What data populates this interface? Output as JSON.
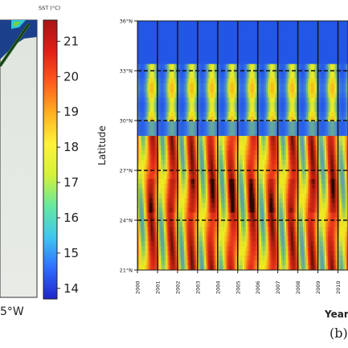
{
  "chart_data": [
    {
      "type": "heatmap",
      "panel": "map",
      "colorbar": {
        "label": "SST (°C)",
        "ticks": [
          21,
          20,
          19,
          18,
          17,
          16,
          15,
          14
        ],
        "range": [
          13.7,
          21.6
        ],
        "colors": [
          "#1f25c8",
          "#2f6dff",
          "#3fc7f0",
          "#66e8a0",
          "#d4f23a",
          "#fff23a",
          "#ffb020",
          "#ff5a1e",
          "#e01e18",
          "#a81414"
        ]
      },
      "xtick_labels": [
        "5°W"
      ],
      "ocean_color": "#e4e8e2",
      "land_color": "#1b3f8a",
      "track_color": "#2b6b2b"
    },
    {
      "type": "heatmap",
      "panel": "hovmoller",
      "panel_label": "(b)",
      "xlabel": "Year",
      "ylabel": "Latitude",
      "x_tick_labels": [
        "2000",
        "2001",
        "2002",
        "2003",
        "2004",
        "2005",
        "2006",
        "2007",
        "2008",
        "2009",
        "2010"
      ],
      "y_tick_labels": [
        "36°N",
        "33°N",
        "30°N",
        "27°N",
        "24°N",
        "21°N"
      ],
      "y_values": [
        36,
        33,
        30,
        27,
        24,
        21
      ],
      "xlim": [
        2000,
        2010.5
      ],
      "ylim": [
        21,
        36
      ],
      "dashed_latitudes": [
        33,
        30,
        27,
        24
      ],
      "year_separators": [
        2000,
        2001,
        2002,
        2003,
        2004,
        2005,
        2006,
        2007,
        2008,
        2009,
        2010
      ],
      "summer_peaks": [
        2000.75,
        2001.7,
        2002.75,
        2003.7,
        2004.75,
        2005.7,
        2006.75,
        2007.7,
        2008.75,
        2009.7,
        2010.4
      ],
      "colors": {
        "cold": "#1f52e6",
        "mid": "#f2ee1e",
        "warm": "#e8301c",
        "hot": "#2a0a04"
      }
    }
  ]
}
